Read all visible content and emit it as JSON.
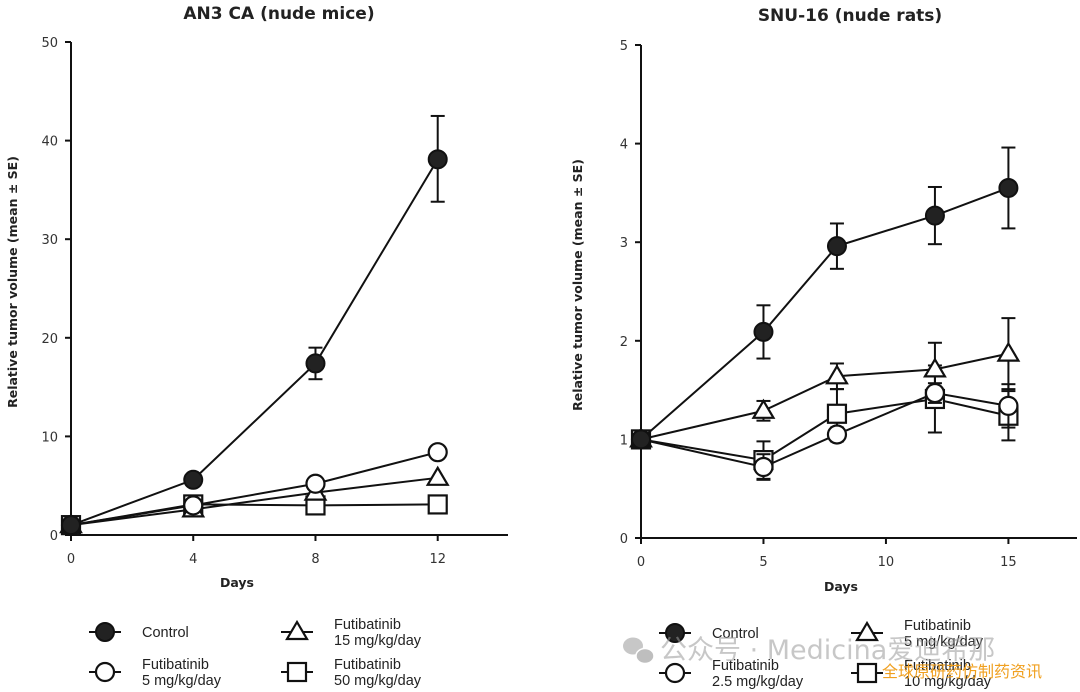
{
  "chart_data": [
    {
      "type": "line",
      "title": "AN3 CA (nude mice)",
      "xlabel": "Days",
      "ylabel": "Relative tumor volume (mean ± SE)",
      "x_ticks": [
        0,
        4,
        8,
        12
      ],
      "y_ticks": [
        0,
        10,
        20,
        30,
        40,
        50
      ],
      "xlim": [
        0,
        14.3
      ],
      "ylim": [
        0,
        50
      ],
      "grid": false,
      "legend_position": "bottom",
      "series": [
        {
          "name": "Control",
          "marker": "filled-circle",
          "x": [
            0,
            4,
            8,
            12
          ],
          "values": [
            1.0,
            5.6,
            17.4,
            38.1
          ],
          "err_up": [
            0,
            0,
            1.6,
            4.4
          ],
          "err_down": [
            0,
            0,
            1.6,
            4.3
          ]
        },
        {
          "name": "Futibatinib 5 mg/kg/day",
          "marker": "open-circle",
          "x": [
            0,
            4,
            8,
            12
          ],
          "values": [
            1.0,
            3.0,
            5.2,
            8.4
          ],
          "err_up": [
            0,
            0,
            0,
            0
          ],
          "err_down": [
            0,
            0,
            0,
            0
          ]
        },
        {
          "name": "Futibatinib 15 mg/kg/day",
          "marker": "open-triangle",
          "x": [
            0,
            4,
            8,
            12
          ],
          "values": [
            1.0,
            2.6,
            4.3,
            5.8
          ],
          "err_up": [
            0,
            0,
            0,
            0
          ],
          "err_down": [
            0,
            0,
            0,
            0
          ]
        },
        {
          "name": "Futibatinib 50 mg/kg/day",
          "marker": "open-square",
          "x": [
            0,
            4,
            8,
            12
          ],
          "values": [
            1.0,
            3.1,
            3.0,
            3.1
          ],
          "err_up": [
            0,
            0,
            0,
            0
          ],
          "err_down": [
            0,
            0,
            0,
            0
          ]
        }
      ],
      "legend": [
        {
          "marker": "filled-circle",
          "line1": "Control",
          "line2": ""
        },
        {
          "marker": "open-triangle",
          "line1": "Futibatinib",
          "line2": "15 mg/kg/day"
        },
        {
          "marker": "open-circle",
          "line1": "Futibatinib",
          "line2": "5 mg/kg/day"
        },
        {
          "marker": "open-square",
          "line1": "Futibatinib",
          "line2": "50 mg/kg/day"
        }
      ]
    },
    {
      "type": "line",
      "title": "SNU-16 (nude rats)",
      "xlabel": "Days",
      "ylabel": "Relative tumor volume (mean ± SE)",
      "x_ticks": [
        0,
        5,
        10,
        15
      ],
      "y_ticks": [
        0,
        1,
        2,
        3,
        4,
        5
      ],
      "xlim": [
        0,
        17.8
      ],
      "ylim": [
        0,
        5
      ],
      "grid": false,
      "legend_position": "bottom",
      "series": [
        {
          "name": "Control",
          "marker": "filled-circle",
          "x": [
            0,
            5,
            8,
            12,
            15
          ],
          "values": [
            1.0,
            2.09,
            2.96,
            3.27,
            3.55
          ],
          "err_up": [
            0,
            0.27,
            0.23,
            0.29,
            0.41
          ],
          "err_down": [
            0,
            0.27,
            0.23,
            0.29,
            0.41
          ]
        },
        {
          "name": "Futibatinib 2.5 mg/kg/day",
          "marker": "open-circle",
          "x": [
            0,
            5,
            8,
            12,
            15
          ],
          "values": [
            1.0,
            0.72,
            1.05,
            1.47,
            1.34
          ],
          "err_up": [
            0,
            0.13,
            0.07,
            0.1,
            0.22
          ],
          "err_down": [
            0,
            0.13,
            0.07,
            0.1,
            0.22
          ]
        },
        {
          "name": "Futibatinib 5 mg/kg/day",
          "marker": "open-triangle",
          "x": [
            0,
            5,
            8,
            12,
            15
          ],
          "values": [
            1.0,
            1.29,
            1.64,
            1.71,
            1.87
          ],
          "err_up": [
            0,
            0.1,
            0.13,
            0.27,
            0.36
          ],
          "err_down": [
            0,
            0.1,
            0.13,
            0.27,
            0.36
          ]
        },
        {
          "name": "Futibatinib 10 mg/kg/day",
          "marker": "open-square",
          "x": [
            0,
            5,
            8,
            12,
            15
          ],
          "values": [
            1.0,
            0.79,
            1.26,
            1.41,
            1.24
          ],
          "err_up": [
            0,
            0.19,
            0.25,
            0.34,
            0.25
          ],
          "err_down": [
            0,
            0.19,
            0.25,
            0.34,
            0.25
          ]
        }
      ],
      "legend": [
        {
          "marker": "filled-circle",
          "line1": "Control",
          "line2": ""
        },
        {
          "marker": "open-triangle",
          "line1": "Futibatinib",
          "line2": "5 mg/kg/day"
        },
        {
          "marker": "open-circle",
          "line1": "Futibatinib",
          "line2": "2.5 mg/kg/day"
        },
        {
          "marker": "open-square",
          "line1": "Futibatinib",
          "line2": "10 mg/kg/day"
        }
      ]
    }
  ],
  "watermark": {
    "source_text": "公众号 · Medicina爱迪希那",
    "tagline": "全球原研药仿制药资讯",
    "icon": "wechat-icon"
  }
}
